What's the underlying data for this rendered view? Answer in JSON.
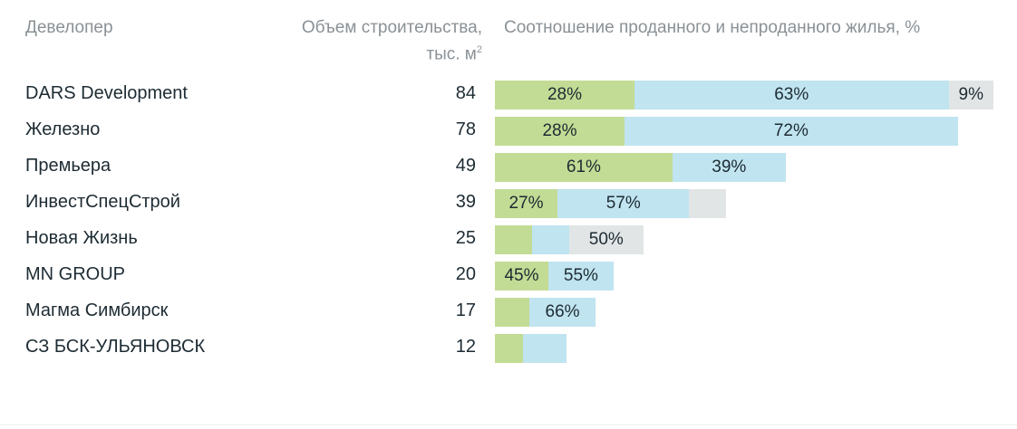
{
  "chart_data": {
    "type": "bar",
    "stacked": true,
    "headers": {
      "developer": "Девелопер",
      "volume": "Объем строительства,",
      "volume_unit": "тыс. м",
      "volume_sup": "2",
      "ratio": "Соотношение проданного и непроданного жилья, %"
    },
    "colors": {
      "sold": "#c3dc95",
      "unsold": "#c0e4f0",
      "other": "#e2e5e6"
    },
    "rows": [
      {
        "name": "DARS Development",
        "volume": "84",
        "segments": [
          {
            "type": "sold",
            "value": 28,
            "label": "28%"
          },
          {
            "type": "unsold",
            "value": 63,
            "label": "63%"
          },
          {
            "type": "other",
            "value": 9,
            "label": "9%"
          }
        ]
      },
      {
        "name": "Железно",
        "volume": "78",
        "segments": [
          {
            "type": "sold",
            "value": 28,
            "label": "28%"
          },
          {
            "type": "unsold",
            "value": 72,
            "label": "72%"
          }
        ]
      },
      {
        "name": "Премьера",
        "volume": "49",
        "segments": [
          {
            "type": "sold",
            "value": 61,
            "label": "61%"
          },
          {
            "type": "unsold",
            "value": 39,
            "label": "39%"
          }
        ]
      },
      {
        "name": "ИнвестСпецСтрой",
        "volume": "39",
        "segments": [
          {
            "type": "sold",
            "value": 27,
            "label": "27%"
          },
          {
            "type": "unsold",
            "value": 57,
            "label": "57%"
          },
          {
            "type": "other",
            "value": 16,
            "label": ""
          }
        ]
      },
      {
        "name": "Новая Жизнь",
        "volume": "25",
        "segments": [
          {
            "type": "sold",
            "value": 25,
            "label": ""
          },
          {
            "type": "unsold",
            "value": 25,
            "label": ""
          },
          {
            "type": "other",
            "value": 50,
            "label": "50%"
          }
        ]
      },
      {
        "name": "MN GROUP",
        "volume": "20",
        "segments": [
          {
            "type": "sold",
            "value": 45,
            "label": "45%"
          },
          {
            "type": "unsold",
            "value": 55,
            "label": "55%"
          }
        ]
      },
      {
        "name": "Магма Симбирск",
        "volume": "17",
        "segments": [
          {
            "type": "sold",
            "value": 34,
            "label": ""
          },
          {
            "type": "unsold",
            "value": 66,
            "label": "66%"
          }
        ]
      },
      {
        "name": "СЗ БСК-УЛЬЯНОВСК",
        "volume": "12",
        "segments": [
          {
            "type": "sold",
            "value": 40,
            "label": ""
          },
          {
            "type": "unsold",
            "value": 60,
            "label": ""
          }
        ]
      }
    ]
  }
}
